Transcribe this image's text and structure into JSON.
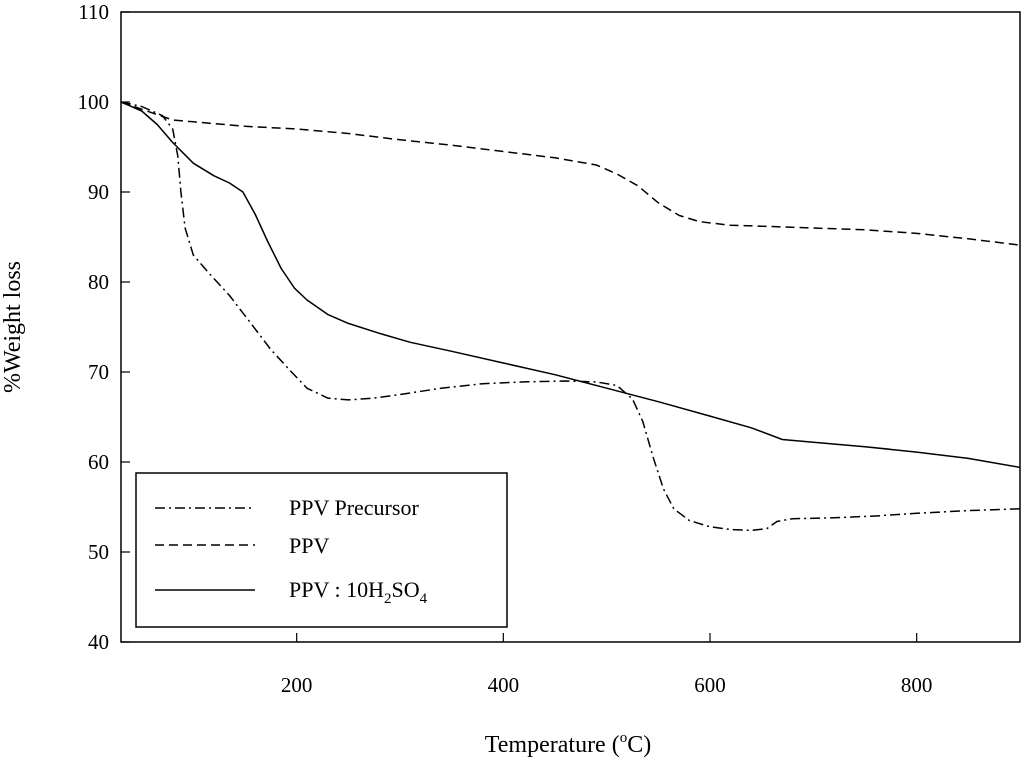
{
  "chart_data": {
    "type": "line",
    "title": "",
    "xlabel": "Temperature (",
    "xlabel_sup": "o",
    "xlabel_end": "C)",
    "ylabel": "%Weight loss",
    "xlim": [
      30,
      900
    ],
    "ylim": [
      40,
      110
    ],
    "x_ticks": [
      200,
      400,
      600,
      800
    ],
    "y_ticks": [
      40,
      50,
      60,
      70,
      80,
      90,
      100,
      110
    ],
    "grid": false,
    "legend_position": "bottom-left",
    "legend": [
      {
        "label": "PPV Precursor",
        "style": "dash-dot"
      },
      {
        "label": "PPV",
        "style": "dashed"
      },
      {
        "label_parts": [
          "PPV : 10H",
          "2",
          "SO",
          "4"
        ],
        "style": "solid"
      }
    ],
    "series": [
      {
        "name": "PPV Precursor",
        "style": "dash-dot",
        "points": [
          [
            30,
            100
          ],
          [
            50,
            99.5
          ],
          [
            70,
            98.5
          ],
          [
            80,
            97
          ],
          [
            85,
            94
          ],
          [
            88,
            90
          ],
          [
            92,
            86
          ],
          [
            100,
            83
          ],
          [
            115,
            81
          ],
          [
            135,
            78.5
          ],
          [
            155,
            75.5
          ],
          [
            175,
            72.5
          ],
          [
            195,
            70
          ],
          [
            210,
            68.2
          ],
          [
            230,
            67.1
          ],
          [
            250,
            66.9
          ],
          [
            275,
            67.1
          ],
          [
            300,
            67.5
          ],
          [
            340,
            68.2
          ],
          [
            380,
            68.7
          ],
          [
            420,
            68.9
          ],
          [
            460,
            69
          ],
          [
            490,
            68.9
          ],
          [
            510,
            68.5
          ],
          [
            525,
            67
          ],
          [
            535,
            64.5
          ],
          [
            545,
            60.5
          ],
          [
            555,
            57
          ],
          [
            565,
            54.8
          ],
          [
            580,
            53.5
          ],
          [
            600,
            52.8
          ],
          [
            620,
            52.5
          ],
          [
            640,
            52.4
          ],
          [
            655,
            52.6
          ],
          [
            665,
            53.4
          ],
          [
            680,
            53.7
          ],
          [
            720,
            53.8
          ],
          [
            760,
            54
          ],
          [
            800,
            54.3
          ],
          [
            850,
            54.6
          ],
          [
            900,
            54.8
          ]
        ]
      },
      {
        "name": "PPV",
        "style": "dashed",
        "points": [
          [
            30,
            100
          ],
          [
            60,
            98.8
          ],
          [
            80,
            98
          ],
          [
            100,
            97.8
          ],
          [
            150,
            97.3
          ],
          [
            200,
            97
          ],
          [
            250,
            96.5
          ],
          [
            300,
            95.8
          ],
          [
            350,
            95.2
          ],
          [
            400,
            94.5
          ],
          [
            450,
            93.8
          ],
          [
            490,
            93
          ],
          [
            510,
            92
          ],
          [
            530,
            90.7
          ],
          [
            550,
            88.8
          ],
          [
            570,
            87.4
          ],
          [
            590,
            86.7
          ],
          [
            620,
            86.3
          ],
          [
            650,
            86.2
          ],
          [
            700,
            86
          ],
          [
            750,
            85.8
          ],
          [
            800,
            85.4
          ],
          [
            850,
            84.8
          ],
          [
            900,
            84.1
          ]
        ]
      },
      {
        "name": "PPV : 10H2SO4",
        "style": "solid",
        "points": [
          [
            30,
            100
          ],
          [
            50,
            99
          ],
          [
            65,
            97.5
          ],
          [
            80,
            95.5
          ],
          [
            100,
            93.2
          ],
          [
            120,
            91.8
          ],
          [
            135,
            91
          ],
          [
            148,
            90
          ],
          [
            160,
            87.5
          ],
          [
            172,
            84.5
          ],
          [
            185,
            81.5
          ],
          [
            198,
            79.3
          ],
          [
            210,
            78
          ],
          [
            230,
            76.4
          ],
          [
            250,
            75.4
          ],
          [
            280,
            74.3
          ],
          [
            310,
            73.3
          ],
          [
            350,
            72.3
          ],
          [
            400,
            71
          ],
          [
            450,
            69.7
          ],
          [
            500,
            68.2
          ],
          [
            550,
            66.7
          ],
          [
            600,
            65.1
          ],
          [
            640,
            63.8
          ],
          [
            670,
            62.5
          ],
          [
            700,
            62.2
          ],
          [
            750,
            61.7
          ],
          [
            800,
            61.1
          ],
          [
            850,
            60.4
          ],
          [
            900,
            59.4
          ]
        ]
      }
    ]
  }
}
